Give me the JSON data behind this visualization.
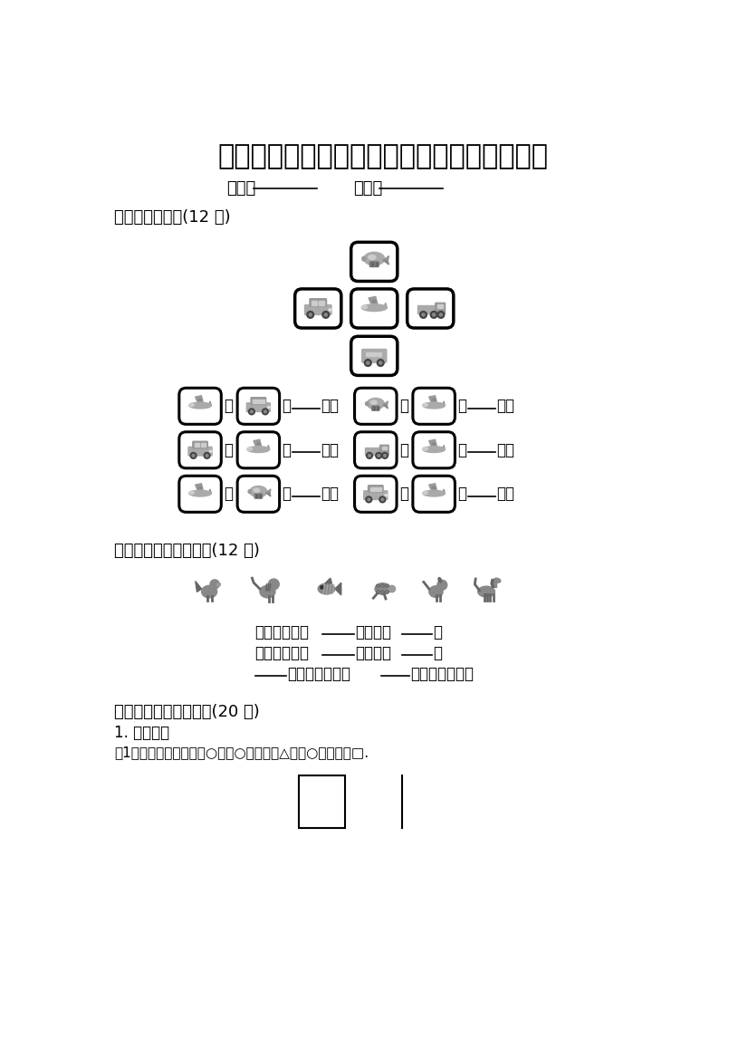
{
  "title": "部编本人教版一年级上册数学第二单元测试卷",
  "bg_color": "#ffffff",
  "title_fontsize": 22,
  "section1_label": "一、看图填空．(12 分)",
  "section2_label": "二、看一看；写一写．(12 分)",
  "section3_label": "三、画一画；填一填．(20 分)",
  "subsection3_1": "1. 画一画．",
  "subsection3_1_1": "（1）在中间的格子里画○；在○的右面画△；在○的左面画□.",
  "name_label": "姓名：",
  "score_label": "满分：",
  "q2_line1": "小鱼的前面是        ；后面是       .",
  "q2_line2": "小狗的前面是        ；后面是       .",
  "q2_line3": "       的后面是老虎；        的后面是小马.",
  "text_color": "#000000"
}
